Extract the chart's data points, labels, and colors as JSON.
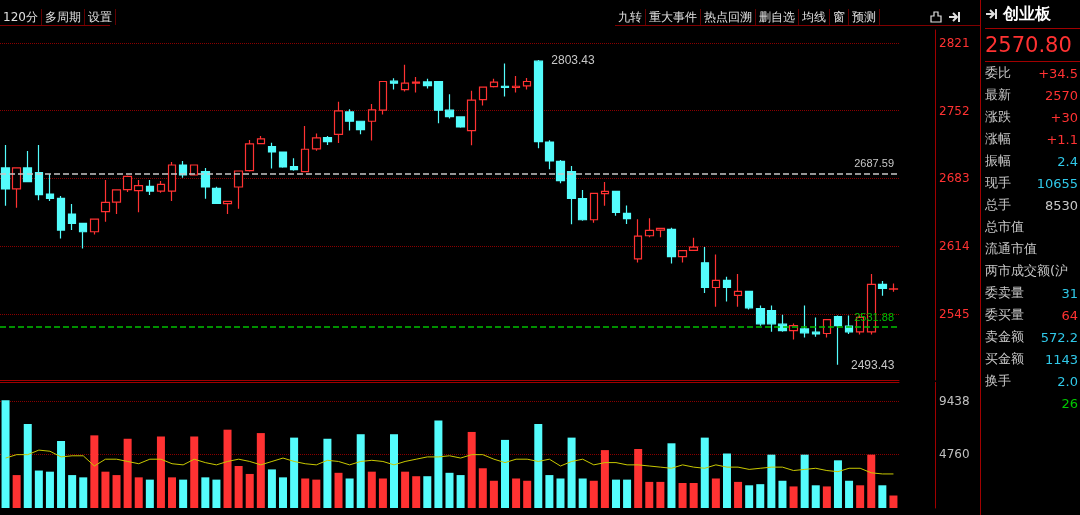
{
  "chart_data": [
    {
      "type": "candlestick",
      "annotations": [
        "2803.43",
        "2493.43"
      ],
      "categories": [
        null,
        null,
        null,
        null,
        null,
        null,
        null,
        null,
        null,
        null,
        null,
        null,
        null,
        null,
        null,
        null,
        null,
        null,
        null,
        null,
        null,
        null,
        null,
        null,
        null,
        null,
        null,
        null,
        null,
        null,
        null,
        null,
        null,
        null,
        null,
        null,
        null,
        null,
        null,
        null,
        null,
        null,
        null,
        null,
        null,
        null,
        null,
        null,
        null,
        null,
        null,
        null,
        null,
        null,
        null,
        null,
        null,
        null,
        null,
        null,
        null,
        null,
        null,
        null,
        null,
        null,
        null,
        null,
        null,
        null,
        null,
        null,
        null,
        null,
        null,
        null,
        null,
        null,
        null,
        null,
        null
      ],
      "colors": [
        "#54fcfc",
        "#ff3232",
        "#54fcfc",
        "#54fcfc",
        "#54fcfc",
        "#54fcfc",
        "#54fcfc",
        "#54fcfc",
        "#ff3232",
        "#ff3232",
        "#ff3232",
        "#ff3232",
        "#ff3232",
        "#54fcfc",
        "#ff3232",
        "#ff3232",
        "#54fcfc",
        "#ff3232",
        "#54fcfc",
        "#54fcfc",
        "#ff3232",
        "#ff3232",
        "#ff3232",
        "#ff3232",
        "#54fcfc",
        "#54fcfc",
        "#54fcfc",
        "#ff3232",
        "#ff3232",
        "#54fcfc",
        "#ff3232",
        "#54fcfc",
        "#54fcfc",
        "#ff3232",
        "#ff3232",
        "#54fcfc",
        "#ff3232",
        "#ff3232",
        "#54fcfc",
        "#54fcfc",
        "#54fcfc",
        "#54fcfc",
        "#ff3232",
        "#ff3232",
        "#ff3232",
        "#54fcfc",
        "#ff3232",
        "#ff3232",
        "#54fcfc",
        "#54fcfc",
        "#54fcfc",
        "#54fcfc",
        "#54fcfc",
        "#ff3232",
        "#ff3232",
        "#54fcfc",
        "#54fcfc",
        "#ff3232",
        "#ff3232",
        "#ff3232",
        "#54fcfc",
        "#ff3232",
        "#ff3232",
        "#54fcfc",
        "#ff3232",
        "#54fcfc",
        "#ff3232",
        "#54fcfc",
        "#54fcfc",
        "#54fcfc",
        "#54fcfc",
        "#ff3232",
        "#54fcfc",
        "#54fcfc",
        "#ff3232",
        "#54fcfc",
        "#54fcfc",
        "#ff3232",
        "#ff3232",
        "#54fcfc",
        "#ff3232"
      ],
      "ohlc": [
        [
          2693.7,
          2717.1,
          2655.3,
          2672.3
        ],
        [
          2672.3,
          2693.7,
          2653.3,
          2693.7
        ],
        [
          2693.7,
          2711.0,
          2679.8,
          2679.8
        ],
        [
          2688.9,
          2717.1,
          2660.8,
          2666.5
        ],
        [
          2667.2,
          2687.6,
          2660.1,
          2662.8
        ],
        [
          2662.8,
          2665.2,
          2622.0,
          2630.5
        ],
        [
          2646.8,
          2657.0,
          2630.5,
          2637.3
        ],
        [
          2637.3,
          2638.0,
          2611.8,
          2628.8
        ],
        [
          2628.8,
          2641.7,
          2626.1,
          2641.7
        ],
        [
          2649.2,
          2681.4,
          2639.0,
          2658.7
        ],
        [
          2659.0,
          2671.3,
          2646.8,
          2671.3
        ],
        [
          2671.6,
          2685.9,
          2669.2,
          2685.2
        ],
        [
          2670.6,
          2681.4,
          2648.5,
          2675.7
        ],
        [
          2675.0,
          2681.4,
          2666.1,
          2670.2
        ],
        [
          2670.2,
          2680.4,
          2668.5,
          2677.0
        ],
        [
          2670.2,
          2699.8,
          2660.1,
          2696.7
        ],
        [
          2696.7,
          2700.8,
          2683.8,
          2686.5
        ],
        [
          2686.5,
          2696.7,
          2685.9,
          2696.7
        ],
        [
          2690.0,
          2693.7,
          2662.4,
          2674.3
        ],
        [
          2672.9,
          2674.6,
          2657.0,
          2657.7
        ],
        [
          2657.3,
          2659.7,
          2646.8,
          2659.7
        ],
        [
          2674.3,
          2690.6,
          2652.2,
          2690.6
        ],
        [
          2690.9,
          2722.2,
          2690.0,
          2718.1
        ],
        [
          2718.4,
          2726.2,
          2718.4,
          2723.2
        ],
        [
          2715.4,
          2719.4,
          2693.0,
          2709.9
        ],
        [
          2709.9,
          2709.9,
          2694.0,
          2694.7
        ],
        [
          2695.0,
          2703.5,
          2690.9,
          2691.9
        ],
        [
          2690.0,
          2736.4,
          2690.0,
          2712.7
        ],
        [
          2713.0,
          2728.6,
          2711.3,
          2724.2
        ],
        [
          2724.5,
          2726.2,
          2717.1,
          2720.5
        ],
        [
          2727.9,
          2760.9,
          2719.1,
          2751.7
        ],
        [
          2750.7,
          2753.4,
          2731.7,
          2741.2
        ],
        [
          2741.2,
          2741.2,
          2727.9,
          2732.7
        ],
        [
          2741.2,
          2758.8,
          2721.5,
          2752.7
        ],
        [
          2752.4,
          2781.6,
          2748.0,
          2781.6
        ],
        [
          2781.9,
          2785.0,
          2773.4,
          2779.9
        ],
        [
          2773.4,
          2798.6,
          2771.4,
          2779.9
        ],
        [
          2779.9,
          2786.3,
          2770.4,
          2780.9
        ],
        [
          2781.2,
          2784.3,
          2774.4,
          2777.5
        ],
        [
          2781.6,
          2781.6,
          2739.1,
          2752.4
        ],
        [
          2752.4,
          2768.7,
          2743.9,
          2745.9
        ],
        [
          2745.6,
          2746.3,
          2734.7,
          2735.4
        ],
        [
          2731.7,
          2772.1,
          2716.7,
          2762.6
        ],
        [
          2763.2,
          2775.8,
          2757.1,
          2775.8
        ],
        [
          2776.5,
          2784.3,
          2775.5,
          2780.9
        ],
        [
          2776.8,
          2800.0,
          2766.3,
          2775.5
        ],
        [
          2775.5,
          2787.3,
          2770.4,
          2776.8
        ],
        [
          2777.2,
          2785.3,
          2773.4,
          2781.6
        ],
        [
          2802.3,
          2803.43,
          2713.7,
          2720.5
        ],
        [
          2720.1,
          2721.8,
          2692.3,
          2700.8
        ],
        [
          2700.4,
          2701.8,
          2678.0,
          2680.7
        ],
        [
          2690.0,
          2695.7,
          2636.3,
          2662.8
        ],
        [
          2662.4,
          2671.3,
          2640.0,
          2641.0
        ],
        [
          2641.0,
          2668.5,
          2638.0,
          2667.8
        ],
        [
          2667.5,
          2679.4,
          2655.3,
          2669.9
        ],
        [
          2669.9,
          2669.9,
          2645.1,
          2648.5
        ],
        [
          2647.5,
          2655.6,
          2636.6,
          2642.1
        ],
        [
          2601.3,
          2641.4,
          2597.6,
          2624.4
        ],
        [
          2624.7,
          2642.4,
          2623.1,
          2630.2
        ],
        [
          2630.5,
          2632.2,
          2623.1,
          2632.2
        ],
        [
          2631.2,
          2632.9,
          2596.6,
          2603.4
        ],
        [
          2603.4,
          2610.1,
          2597.6,
          2609.5
        ],
        [
          2609.8,
          2622.7,
          2609.8,
          2613.2
        ],
        [
          2597.2,
          2613.2,
          2566.4,
          2572.1
        ],
        [
          2572.1,
          2605.7,
          2552.4,
          2579.3
        ],
        [
          2579.3,
          2583.0,
          2557.9,
          2572.1
        ],
        [
          2564.0,
          2585.7,
          2552.4,
          2568.1
        ],
        [
          2568.1,
          2568.1,
          2549.7,
          2551.4
        ],
        [
          2550.7,
          2553.8,
          2533.1,
          2535.1
        ],
        [
          2548.7,
          2553.8,
          2527.0,
          2535.1
        ],
        [
          2534.8,
          2544.3,
          2527.0,
          2528.3
        ],
        [
          2528.3,
          2535.5,
          2519.2,
          2533.4
        ],
        [
          2530.0,
          2553.8,
          2521.2,
          2526.0
        ],
        [
          2526.6,
          2541.6,
          2521.9,
          2524.9
        ],
        [
          2525.3,
          2539.5,
          2521.2,
          2539.5
        ],
        [
          2542.6,
          2543.6,
          2493.43,
          2533.4
        ],
        [
          2532.7,
          2543.6,
          2524.9,
          2527.0
        ],
        [
          2527.0,
          2543.6,
          2524.3,
          2541.6
        ],
        [
          2527.0,
          2585.7,
          2524.3,
          2575.2
        ],
        [
          2575.2,
          2578.6,
          2563.6,
          2571.1
        ],
        [
          2570.5,
          2576.2,
          2567.7,
          2570.8
        ]
      ],
      "ylim": [
        2478,
        2834
      ],
      "yticks": [
        2545,
        2614,
        2683,
        2752,
        2821
      ],
      "grid": "y",
      "tick_labels": "y",
      "ref_lines": [
        {
          "axis": "y",
          "value": 2687.59,
          "label": "2687.59",
          "color": "#c8c8c8",
          "line_style": "dashed"
        },
        {
          "axis": "y",
          "value": 2531.88,
          "label": "2531.88",
          "color": "#00c000",
          "line_style": "dashed"
        }
      ]
    },
    {
      "type": "bar",
      "categories": [
        null,
        null,
        null,
        null,
        null,
        null,
        null,
        null,
        null,
        null,
        null,
        null,
        null,
        null,
        null,
        null,
        null,
        null,
        null,
        null,
        null,
        null,
        null,
        null,
        null,
        null,
        null,
        null,
        null,
        null,
        null,
        null,
        null,
        null,
        null,
        null,
        null,
        null,
        null,
        null,
        null,
        null,
        null,
        null,
        null,
        null,
        null,
        null,
        null,
        null,
        null,
        null,
        null,
        null,
        null,
        null,
        null,
        null,
        null,
        null,
        null,
        null,
        null,
        null,
        null,
        null,
        null,
        null,
        null,
        null,
        null,
        null,
        null,
        null,
        null,
        null,
        null,
        null,
        null,
        null,
        null
      ],
      "series": [
        {
          "type": "bar",
          "values": [
            9500,
            2900,
            7400,
            3300,
            3200,
            5900,
            2900,
            2700,
            6400,
            3200,
            2900,
            6100,
            2700,
            2500,
            6300,
            2700,
            2500,
            6300,
            2700,
            2500,
            6900,
            3700,
            3000,
            6600,
            3400,
            2700,
            6200,
            2600,
            2500,
            6100,
            3100,
            2600,
            6500,
            3200,
            2600,
            6500,
            3200,
            2800,
            2800,
            7700,
            3100,
            2900,
            6700,
            3500,
            2400,
            6000,
            2600,
            2400,
            7400,
            2900,
            2600,
            6200,
            2600,
            2400,
            5100,
            2500,
            2500,
            5200,
            2300,
            2300,
            5700,
            2200,
            2200,
            6200,
            2600,
            4800,
            2300,
            2000,
            2100,
            4700,
            2400,
            1900,
            4700,
            2000,
            1900,
            4200,
            2400,
            2000,
            4700,
            2000,
            1100
          ],
          "colors": [
            "#54fcfc",
            "#ff3232",
            "#54fcfc",
            "#54fcfc",
            "#54fcfc",
            "#54fcfc",
            "#54fcfc",
            "#54fcfc",
            "#ff3232",
            "#ff3232",
            "#ff3232",
            "#ff3232",
            "#ff3232",
            "#54fcfc",
            "#ff3232",
            "#ff3232",
            "#54fcfc",
            "#ff3232",
            "#54fcfc",
            "#54fcfc",
            "#ff3232",
            "#ff3232",
            "#ff3232",
            "#ff3232",
            "#54fcfc",
            "#54fcfc",
            "#54fcfc",
            "#ff3232",
            "#ff3232",
            "#54fcfc",
            "#ff3232",
            "#54fcfc",
            "#54fcfc",
            "#ff3232",
            "#ff3232",
            "#54fcfc",
            "#ff3232",
            "#ff3232",
            "#54fcfc",
            "#54fcfc",
            "#54fcfc",
            "#54fcfc",
            "#ff3232",
            "#ff3232",
            "#ff3232",
            "#54fcfc",
            "#ff3232",
            "#ff3232",
            "#54fcfc",
            "#54fcfc",
            "#54fcfc",
            "#54fcfc",
            "#54fcfc",
            "#ff3232",
            "#ff3232",
            "#54fcfc",
            "#54fcfc",
            "#ff3232",
            "#ff3232",
            "#ff3232",
            "#54fcfc",
            "#ff3232",
            "#ff3232",
            "#54fcfc",
            "#ff3232",
            "#54fcfc",
            "#ff3232",
            "#54fcfc",
            "#54fcfc",
            "#54fcfc",
            "#54fcfc",
            "#ff3232",
            "#54fcfc",
            "#54fcfc",
            "#ff3232",
            "#54fcfc",
            "#54fcfc",
            "#ff3232",
            "#ff3232",
            "#54fcfc",
            "#ff3232"
          ]
        },
        {
          "type": "line",
          "color": "#c8c800",
          "values": [
            4400,
            4700,
            4700,
            5100,
            5000,
            4500,
            4600,
            4600,
            3700,
            4300,
            4300,
            4100,
            3900,
            4300,
            4300,
            3900,
            3800,
            4300,
            4000,
            3800,
            4100,
            4300,
            4100,
            3800,
            4100,
            4400,
            4100,
            3900,
            3800,
            4200,
            4100,
            3800,
            4100,
            4200,
            4100,
            3800,
            4100,
            4300,
            4500,
            4500,
            4600,
            4400,
            4700,
            4700,
            4300,
            4000,
            4300,
            4300,
            4100,
            4300,
            3700,
            4100,
            4300,
            3800,
            4000,
            4000,
            3800,
            3800,
            3700,
            3600,
            3500,
            3800,
            3600,
            3500,
            3800,
            3600,
            3600,
            3400,
            3500,
            3600,
            3600,
            3300,
            3400,
            3500,
            3300,
            3200,
            3500,
            3500,
            3100,
            3000,
            3000
          ]
        }
      ],
      "ylim": [
        0,
        11100
      ],
      "yticks": [
        4760,
        9438
      ],
      "grid": "y",
      "tick_labels": "y"
    },
    {
      "type": "other",
      "title": "创业板",
      "subtitle": "2570.80",
      "categories": [
        "委比",
        "最新",
        "涨跌",
        "涨幅",
        "振幅",
        "现手",
        "总手",
        "总市值",
        "流通市值",
        "两市成交额(沪",
        "委卖量",
        "委买量",
        "卖金额",
        "买金额",
        "换手",
        null
      ],
      "value_labels": [
        "+34.5",
        "2570",
        "+30",
        "+1.1",
        "2.4",
        "10655",
        "8530",
        null,
        null,
        null,
        "31",
        "64",
        "572.2",
        "1143",
        "2.0",
        "26"
      ],
      "colors": [
        "#ff3232",
        "#ff3232",
        "#ff3232",
        "#ff3232",
        "#30c8e8",
        "#30c8e8",
        "#c8c8c8",
        null,
        null,
        null,
        "#30c8e8",
        "#ff3232",
        "#30c8e8",
        "#30c8e8",
        "#30c8e8",
        "#00c800"
      ]
    },
    {
      "type": "other",
      "annotations": [
        "120分",
        "多周期",
        "设置"
      ]
    },
    {
      "type": "other",
      "annotations": [
        "九转",
        "重大事件",
        "热点回溯",
        "删自选",
        "均线",
        "窗",
        "预测"
      ]
    }
  ]
}
